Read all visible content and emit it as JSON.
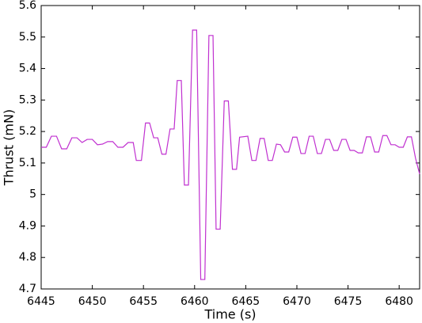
{
  "chart_data": {
    "type": "line",
    "xlabel": "Time (s)",
    "ylabel": "Thrust (mN)",
    "color": "#c030d0",
    "x": [
      6445,
      6445.5,
      6446,
      6446.5,
      6447,
      6447.5,
      6448,
      6448.5,
      6449,
      6449.5,
      6450,
      6450.5,
      6451,
      6451.5,
      6452,
      6452.5,
      6453,
      6453.5,
      6454,
      6454.3,
      6454.8,
      6455.2,
      6455.6,
      6456,
      6456.4,
      6456.8,
      6457.2,
      6457.6,
      6458,
      6458.3,
      6458.7,
      6459,
      6459.4,
      6459.8,
      6460.2,
      6460.6,
      6461,
      6461.4,
      6461.8,
      6462.1,
      6462.5,
      6462.9,
      6463.3,
      6463.7,
      6464.1,
      6464.4,
      6465.2,
      6465.6,
      6466,
      6466.4,
      6466.8,
      6467.2,
      6467.6,
      6468,
      6468.4,
      6468.8,
      6469.2,
      6469.6,
      6470,
      6470.4,
      6470.8,
      6471.2,
      6471.6,
      6472,
      6472.4,
      6472.8,
      6473.2,
      6473.6,
      6474,
      6474.4,
      6474.8,
      6475.2,
      6475.6,
      6476,
      6476.4,
      6476.8,
      6477.2,
      6477.6,
      6478,
      6478.4,
      6478.8,
      6479.2,
      6479.6,
      6480,
      6480.4,
      6480.8,
      6481.2,
      6481.6,
      6482
    ],
    "values": [
      5.15,
      5.15,
      5.185,
      5.185,
      5.145,
      5.145,
      5.18,
      5.18,
      5.165,
      5.175,
      5.175,
      5.158,
      5.16,
      5.168,
      5.168,
      5.15,
      5.15,
      5.165,
      5.165,
      5.108,
      5.108,
      5.227,
      5.227,
      5.18,
      5.18,
      5.128,
      5.128,
      5.208,
      5.208,
      5.362,
      5.362,
      5.03,
      5.03,
      5.522,
      5.522,
      4.73,
      4.73,
      5.505,
      5.505,
      4.89,
      4.89,
      5.297,
      5.297,
      5.08,
      5.08,
      5.182,
      5.185,
      5.108,
      5.108,
      5.178,
      5.178,
      5.108,
      5.108,
      5.16,
      5.158,
      5.135,
      5.135,
      5.182,
      5.182,
      5.13,
      5.13,
      5.185,
      5.185,
      5.13,
      5.13,
      5.175,
      5.175,
      5.14,
      5.14,
      5.175,
      5.175,
      5.14,
      5.14,
      5.132,
      5.132,
      5.183,
      5.183,
      5.135,
      5.135,
      5.187,
      5.187,
      5.158,
      5.158,
      5.15,
      5.15,
      5.183,
      5.183,
      5.115,
      5.065
    ],
    "xlim": [
      6445,
      6482
    ],
    "xticks": [
      6445,
      6450,
      6455,
      6460,
      6465,
      6470,
      6475,
      6480
    ],
    "ylim": [
      4.7,
      5.6
    ],
    "yticks": [
      4.7,
      4.8,
      4.9,
      5,
      5.1,
      5.2,
      5.3,
      5.4,
      5.5,
      5.6
    ]
  }
}
